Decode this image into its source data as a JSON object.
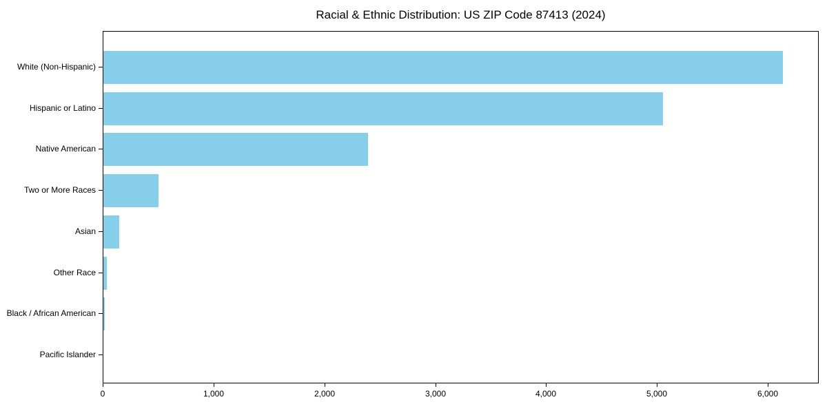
{
  "title": "Racial & Ethnic Distribution: US ZIP Code 87413 (2024)",
  "chart_data": {
    "type": "bar",
    "orientation": "horizontal",
    "title": "Racial & Ethnic Distribution: US ZIP Code 87413 (2024)",
    "categories": [
      "White (Non-Hispanic)",
      "Hispanic or Latino",
      "Native American",
      "Two or More Races",
      "Asian",
      "Other Race",
      "Black / African American",
      "Pacific Islander"
    ],
    "values": [
      6140,
      5060,
      2390,
      500,
      145,
      30,
      15,
      0
    ],
    "xlabel": "",
    "ylabel": "",
    "xlim": [
      0,
      6460
    ],
    "xticks": [
      0,
      1000,
      2000,
      3000,
      4000,
      5000,
      6000
    ],
    "xtick_labels": [
      "0",
      "1,000",
      "2,000",
      "3,000",
      "4,000",
      "5,000",
      "6,000"
    ],
    "bar_color": "#87CEEB",
    "frame_color": "#000000",
    "grid": false,
    "legend": null
  }
}
